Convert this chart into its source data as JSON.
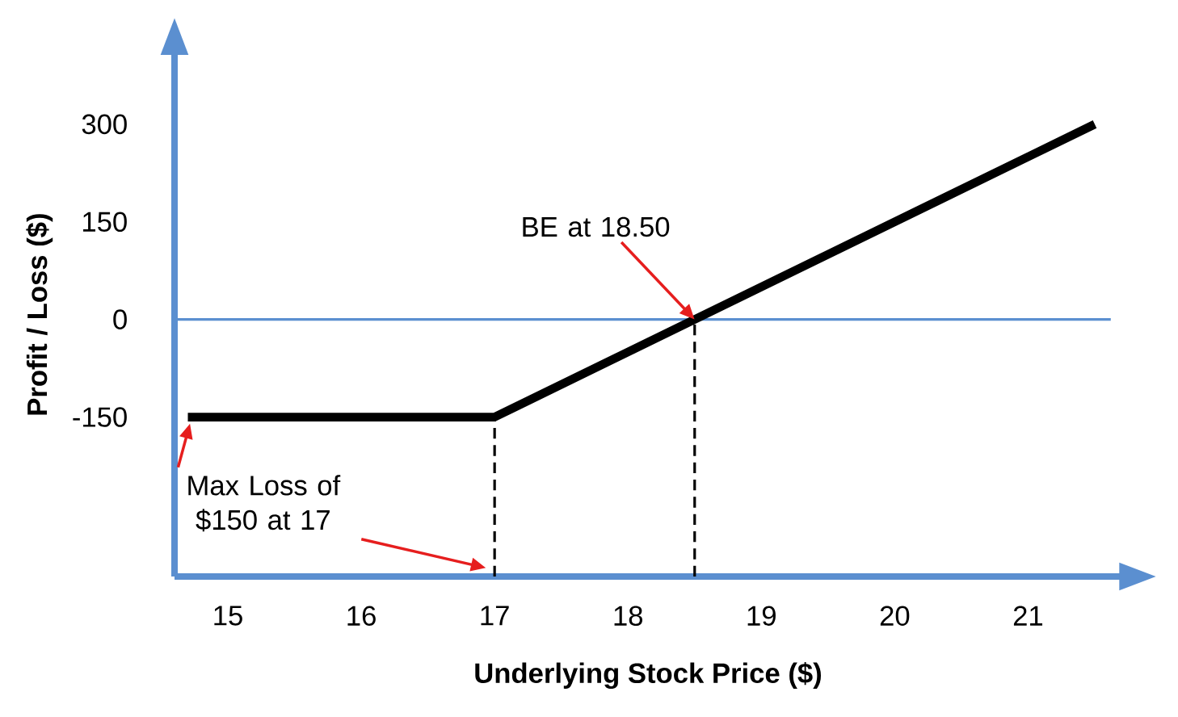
{
  "chart_data": {
    "type": "line",
    "xlabel": "Underlying Stock Price ($)",
    "ylabel": "Profit / Loss ($)",
    "series": [
      {
        "color": "#000000",
        "x": [
          14.7,
          17,
          21.5
        ],
        "values": [
          -150,
          -150,
          300
        ]
      }
    ],
    "xlim": [
      14.6,
      21.7
    ],
    "ylim": [
      -395,
      410
    ],
    "xticks": [
      15,
      16,
      17,
      18,
      19,
      20,
      21
    ],
    "yticks": [
      -150,
      0,
      150,
      300
    ],
    "grid": false,
    "marker": "none",
    "line_style": "solid",
    "ref_lines": [
      {
        "axis": "y",
        "value": 0,
        "color": "#5b8fd0",
        "line_style": "solid"
      },
      {
        "axis": "x",
        "value": 17,
        "color": "#000000",
        "line_style": "dashed"
      },
      {
        "axis": "x",
        "value": 18.5,
        "color": "#000000",
        "line_style": "dashed"
      }
    ],
    "annotations": [
      {
        "text": "BE at 18.50",
        "x": 18.5,
        "y": 0
      },
      {
        "text": "Max Loss of $150 at 17",
        "x": 14.7,
        "y": -150
      }
    ]
  }
}
